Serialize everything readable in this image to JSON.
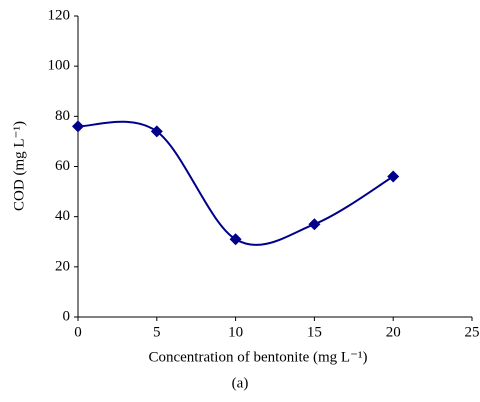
{
  "chart_data": {
    "type": "line",
    "x_label": "Concentration of bentonite (mg L⁻¹)",
    "y_label": "COD (mg L⁻¹)",
    "caption": "(a)",
    "x": [
      0,
      5,
      10,
      15,
      20
    ],
    "series": [
      {
        "color": "#00008b",
        "values": [
          76,
          74,
          31,
          37,
          56
        ]
      }
    ],
    "xlim": [
      0,
      25
    ],
    "xticks": [
      0,
      5,
      10,
      15,
      20,
      25
    ],
    "ylim": [
      0,
      120
    ],
    "yticks": [
      0,
      20,
      40,
      60,
      80,
      100,
      120
    ],
    "smooth": true
  }
}
